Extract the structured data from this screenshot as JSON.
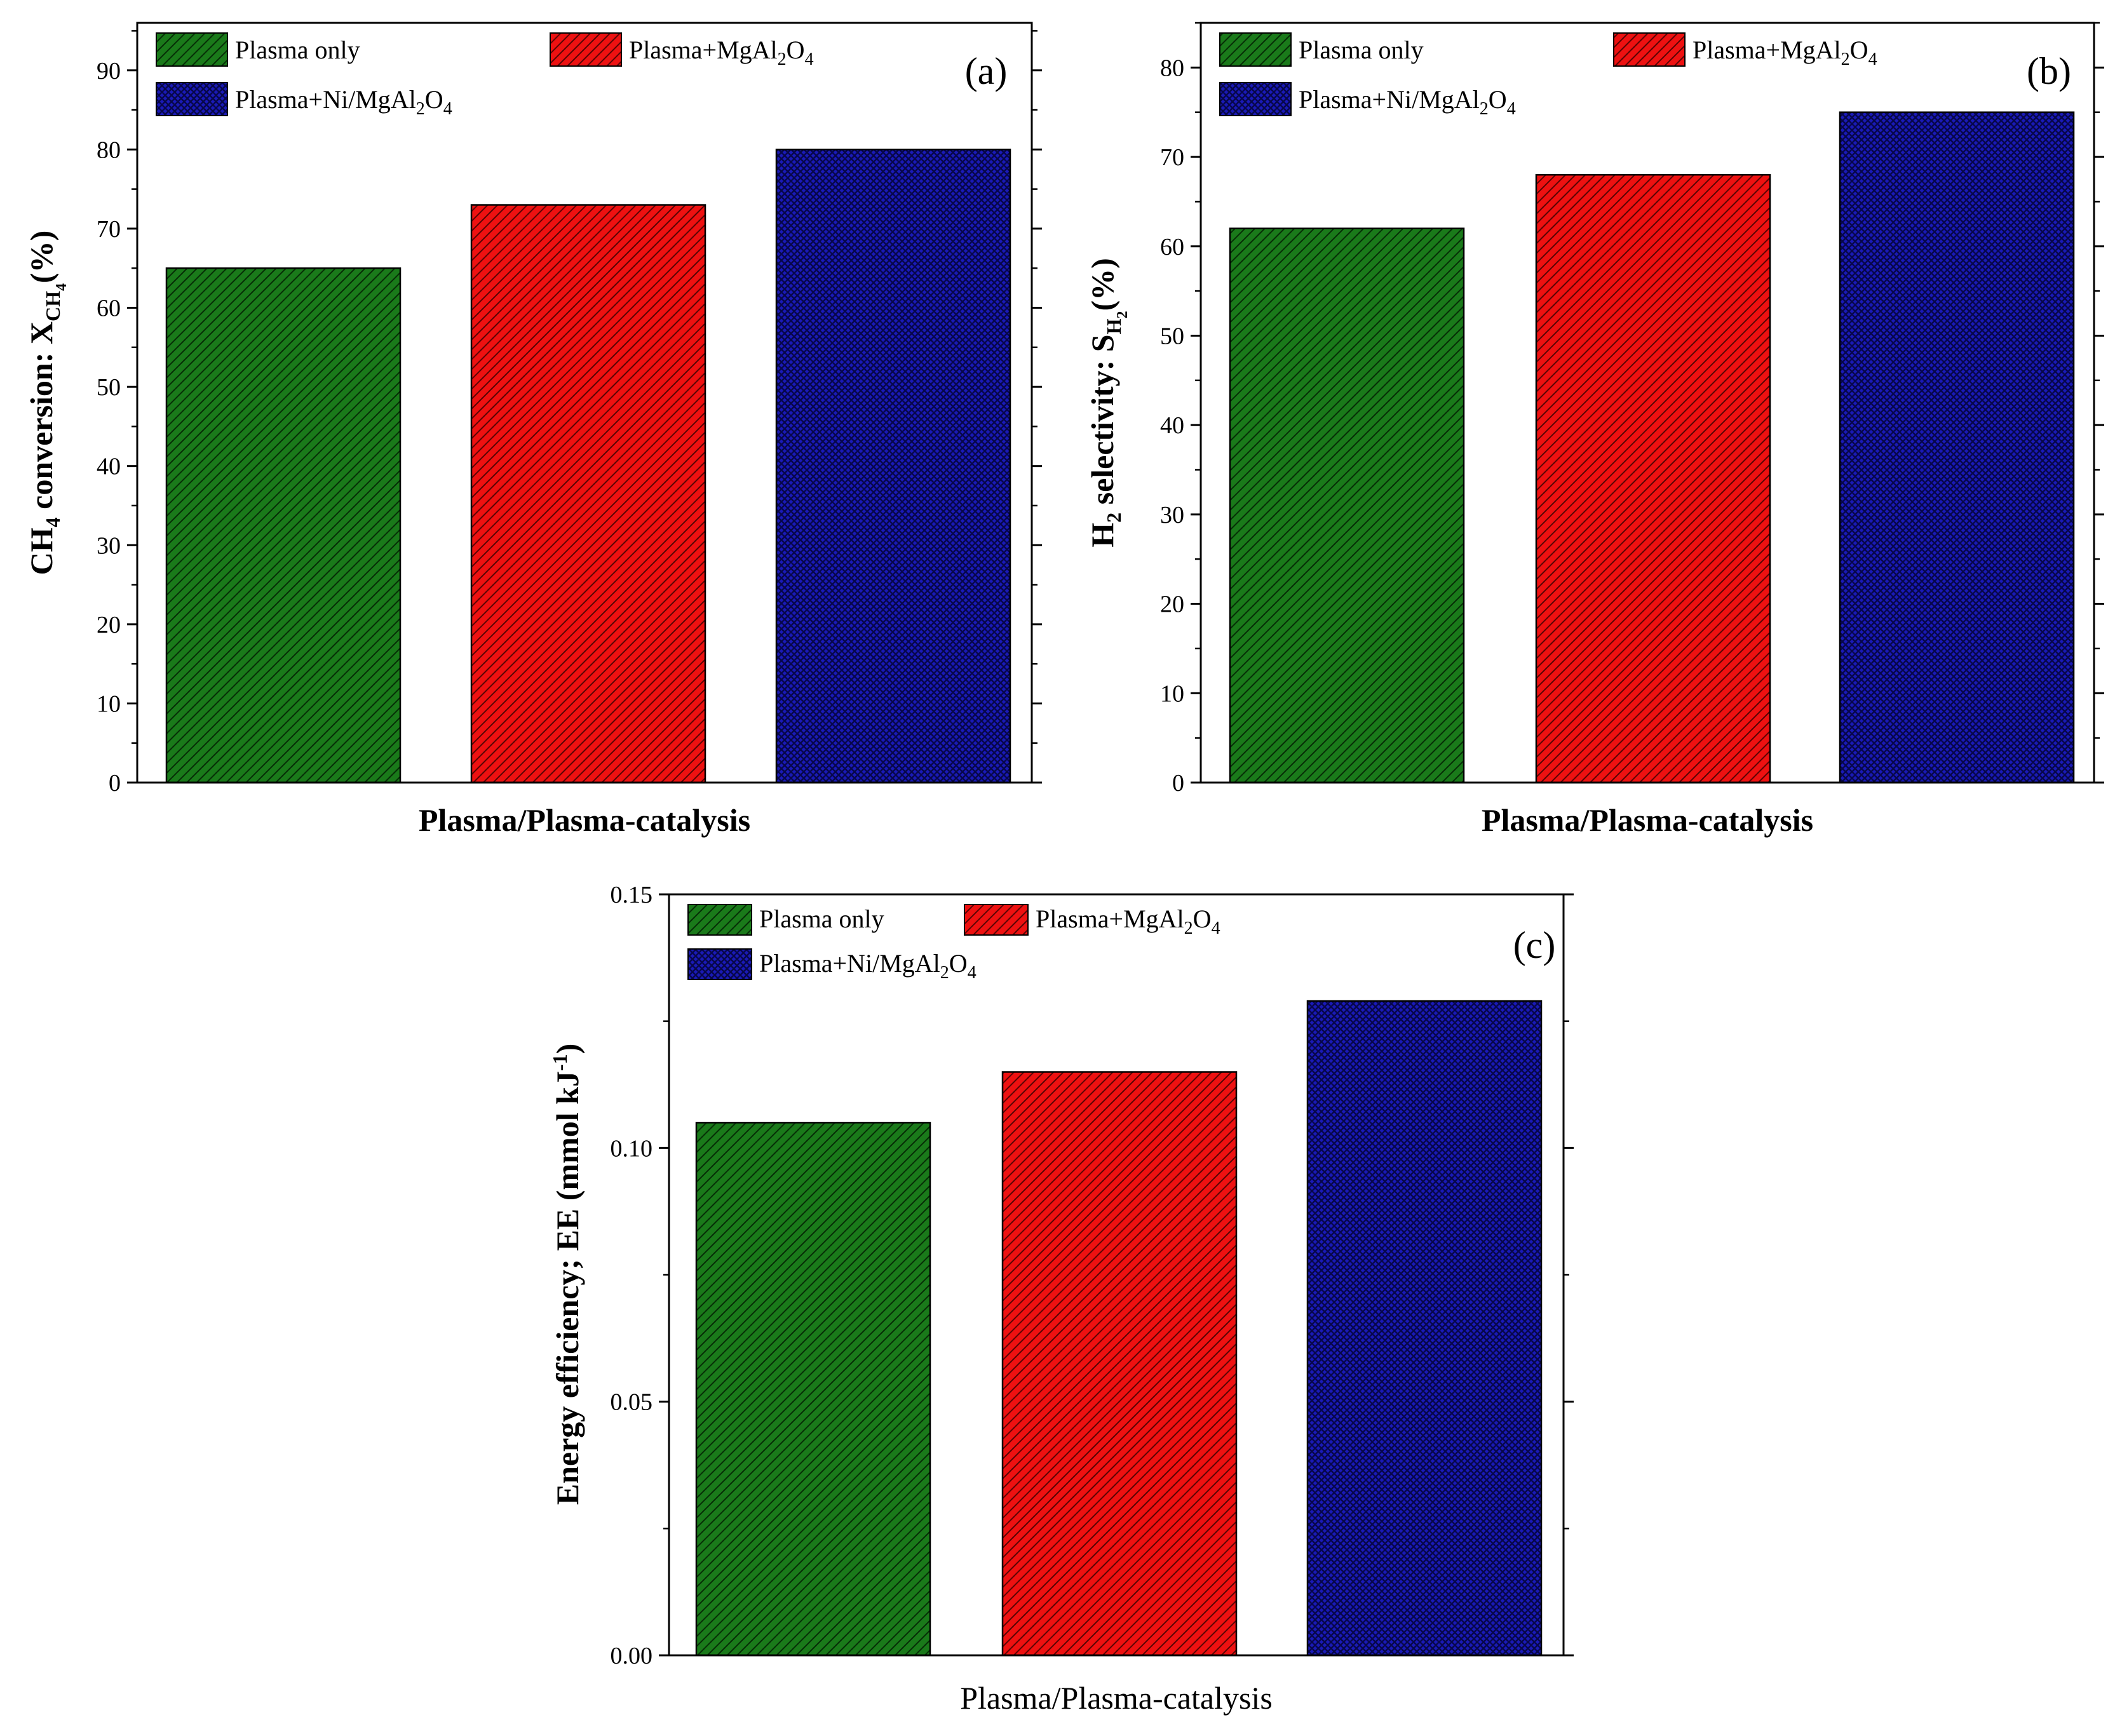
{
  "colors": {
    "plasma_only": "#1a7a1a",
    "plasma_mgal2o4": "#ee1111",
    "plasma_ni_mgal2o4": "#1a1ab8",
    "axis": "#000000"
  },
  "chart_data": [
    {
      "type": "bar",
      "panel": "(a)",
      "categories": [
        "Plasma only",
        "Plasma+MgAl2O4",
        "Plasma+Ni/MgAl2O4"
      ],
      "values": [
        65,
        73,
        80
      ],
      "xlabel": "Plasma/Plasma-catalysis",
      "ylabel_parts": {
        "main": "CH",
        "sub1": "4",
        "mid": " conversion: X",
        "sub2": "CH",
        "sub3": "4",
        "end": "(%)"
      },
      "ylim": [
        0,
        96
      ],
      "yticks": [
        0,
        10,
        20,
        30,
        40,
        50,
        60,
        70,
        80,
        90
      ],
      "ytick_labels": [
        "0",
        "10",
        "20",
        "30",
        "40",
        "50",
        "60",
        "70",
        "80",
        "90"
      ],
      "legend": [
        {
          "base": "Plasma only",
          "sub1": "",
          "mid": "",
          "sub2": "",
          "end": ""
        },
        {
          "base": "Plasma+MgAl",
          "sub1": "2",
          "mid": "O",
          "sub2": "4",
          "end": ""
        },
        {
          "base": "Plasma+Ni/MgAl",
          "sub1": "2",
          "mid": "O",
          "sub2": "4",
          "end": ""
        }
      ],
      "legend_placement": "top-left",
      "grid": false
    },
    {
      "type": "bar",
      "panel": "(b)",
      "categories": [
        "Plasma only",
        "Plasma+MgAl2O4",
        "Plasma+Ni/MgAl2O4"
      ],
      "values": [
        62,
        68,
        75
      ],
      "xlabel": "Plasma/Plasma-catalysis",
      "ylabel_parts": {
        "main": "H",
        "sub1": "2",
        "mid": " selectivity: S",
        "sub2": "H",
        "sub3": "2",
        "end": "(%)"
      },
      "ylim": [
        0,
        85
      ],
      "yticks": [
        0,
        10,
        20,
        30,
        40,
        50,
        60,
        70,
        80
      ],
      "ytick_labels": [
        "0",
        "10",
        "20",
        "30",
        "40",
        "50",
        "60",
        "70",
        "80"
      ],
      "legend": [
        {
          "base": "Plasma only",
          "sub1": "",
          "mid": "",
          "sub2": "",
          "end": ""
        },
        {
          "base": "Plasma+MgAl",
          "sub1": "2",
          "mid": "O",
          "sub2": "4",
          "end": ""
        },
        {
          "base": "Plasma+Ni/MgAl",
          "sub1": "2",
          "mid": "O",
          "sub2": "4",
          "end": ""
        }
      ],
      "legend_placement": "top-left",
      "grid": false
    },
    {
      "type": "bar",
      "panel": "(c)",
      "categories": [
        "Plasma only",
        "Plasma+MgAl2O4",
        "Plasma+Ni/MgAl2O4"
      ],
      "values": [
        0.105,
        0.115,
        0.129
      ],
      "xlabel": "Plasma/Plasma-catalysis",
      "ylabel_parts": {
        "main": "Energy efficiency; EE (mmol kJ",
        "sup": "-1",
        "end": ")"
      },
      "ylim": [
        0,
        0.15
      ],
      "yticks": [
        0,
        0.05,
        0.1,
        0.15
      ],
      "ytick_labels": [
        "0.00",
        "0.05",
        "0.10",
        "0.15"
      ],
      "legend": [
        {
          "base": "Plasma only",
          "sub1": "",
          "mid": "",
          "sub2": "",
          "end": ""
        },
        {
          "base": "Plasma+MgAl",
          "sub1": "2",
          "mid": "O",
          "sub2": "4",
          "end": ""
        },
        {
          "base": "Plasma+Ni/MgAl",
          "sub1": "2",
          "mid": "O",
          "sub2": "4",
          "end": ""
        }
      ],
      "legend_placement": "top-left",
      "grid": false
    }
  ]
}
